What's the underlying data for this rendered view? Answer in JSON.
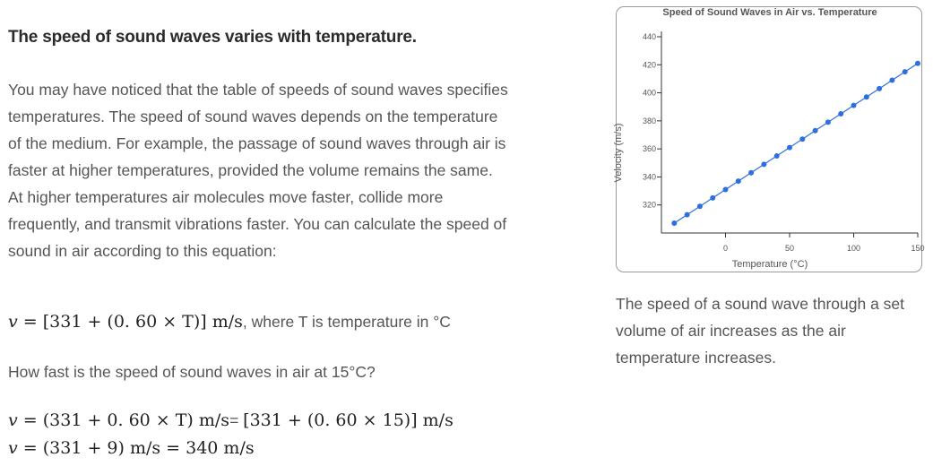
{
  "left": {
    "heading": "The speed of sound waves varies with temperature.",
    "paragraph": "You may have noticed that the table of speeds of sound waves specifies temperatures. The speed of sound waves depends on the temperature of the medium. For example, the passage of sound waves through air is faster at higher temperatures, provided the volume remains the same. At higher temperatures air molecules move faster, collide more frequently, and transmit vibrations faster. You can calculate the speed of sound in air according to this equation:",
    "equation1_suffix": ", where T is temperature in °C",
    "question": "How fast is the speed of sound waves in air at 15°C?",
    "equals_sep": "=",
    "math": {
      "v": "v",
      "eq": " = ",
      "eq1_expr": "[331 + (0. 60 × T)] m/s",
      "eq2_expr": "(331 + 0. 60 × T) m/s",
      "eq2_rhs": "[331 + (0. 60 × 15)] m/s",
      "eq3_expr": "(331 + 9) m/s = 340 m/s"
    }
  },
  "caption": "The speed of a sound wave through a set volume of air increases as the air temperature increases.",
  "colors": {
    "series": "#2e6fe0"
  },
  "chart_data": {
    "type": "line",
    "title": "Speed of Sound Waves in Air vs. Temperature",
    "xlabel": "Temperature (°C)",
    "ylabel": "Velocity (m/s)",
    "x_ticks": [
      "0",
      "50",
      "100",
      "150"
    ],
    "y_ticks": [
      "320",
      "340",
      "360",
      "380",
      "400",
      "420",
      "440"
    ],
    "xlim": [
      -50,
      150
    ],
    "ylim": [
      300,
      440
    ],
    "grid": false,
    "series": [
      {
        "x": [
          -40,
          -30,
          -20,
          -10,
          0,
          10,
          20,
          30,
          40,
          50,
          60,
          70,
          80,
          90,
          100,
          110,
          120,
          130,
          140,
          150
        ],
        "y": [
          307,
          313,
          319,
          325,
          331,
          337,
          343,
          349,
          355,
          361,
          367,
          373,
          379,
          385,
          391,
          397,
          403,
          409,
          415,
          421
        ]
      }
    ]
  }
}
